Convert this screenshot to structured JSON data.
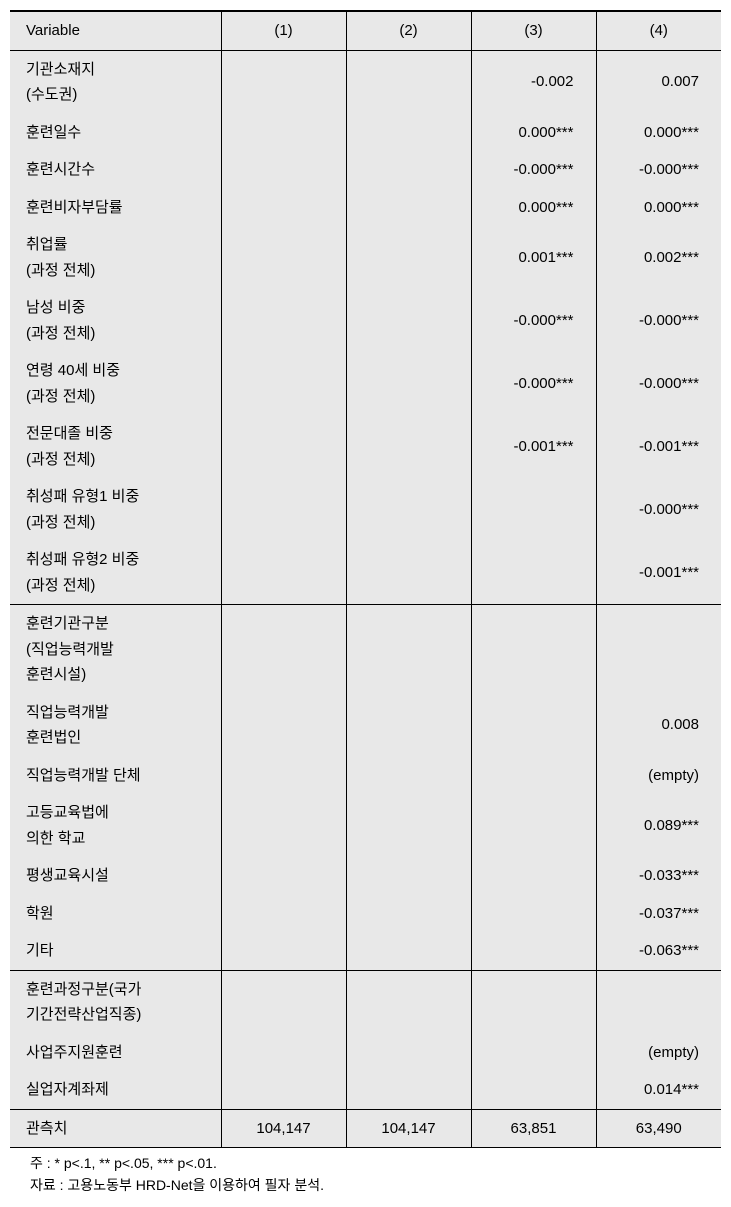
{
  "header": {
    "variable": "Variable",
    "c1": "(1)",
    "c2": "(2)",
    "c3": "(3)",
    "c4": "(4)"
  },
  "rows": [
    {
      "label": "기관소재지\n(수도권)",
      "c1": "",
      "c2": "",
      "c3": "-0.002",
      "c4": "0.007"
    },
    {
      "label": "훈련일수",
      "c1": "",
      "c2": "",
      "c3": "0.000***",
      "c4": "0.000***"
    },
    {
      "label": "훈련시간수",
      "c1": "",
      "c2": "",
      "c3": "-0.000***",
      "c4": "-0.000***"
    },
    {
      "label": "훈련비자부담률",
      "c1": "",
      "c2": "",
      "c3": "0.000***",
      "c4": "0.000***"
    },
    {
      "label": "취업률\n(과정 전체)",
      "c1": "",
      "c2": "",
      "c3": "0.001***",
      "c4": "0.002***"
    },
    {
      "label": "남성 비중\n(과정 전체)",
      "c1": "",
      "c2": "",
      "c3": "-0.000***",
      "c4": "-0.000***"
    },
    {
      "label": "연령 40세 비중\n(과정 전체)",
      "c1": "",
      "c2": "",
      "c3": "-0.000***",
      "c4": "-0.000***"
    },
    {
      "label": "전문대졸 비중\n(과정 전체)",
      "c1": "",
      "c2": "",
      "c3": "-0.001***",
      "c4": "-0.001***"
    },
    {
      "label": "취성패 유형1 비중\n(과정 전체)",
      "c1": "",
      "c2": "",
      "c3": "",
      "c4": "-0.000***"
    },
    {
      "label": "취성패 유형2 비중\n(과정 전체)",
      "c1": "",
      "c2": "",
      "c3": "",
      "c4": "-0.001***"
    }
  ],
  "section2": [
    {
      "label": "훈련기관구분\n(직업능력개발\n훈련시설)",
      "c1": "",
      "c2": "",
      "c3": "",
      "c4": ""
    },
    {
      "label": "직업능력개발\n훈련법인",
      "c1": "",
      "c2": "",
      "c3": "",
      "c4": "0.008"
    },
    {
      "label": "직업능력개발 단체",
      "c1": "",
      "c2": "",
      "c3": "",
      "c4": "(empty)"
    },
    {
      "label": "고등교육법에\n의한 학교",
      "c1": "",
      "c2": "",
      "c3": "",
      "c4": "0.089***"
    },
    {
      "label": "평생교육시설",
      "c1": "",
      "c2": "",
      "c3": "",
      "c4": "-0.033***"
    },
    {
      "label": "학원",
      "c1": "",
      "c2": "",
      "c3": "",
      "c4": "-0.037***"
    },
    {
      "label": "기타",
      "c1": "",
      "c2": "",
      "c3": "",
      "c4": "-0.063***"
    }
  ],
  "section3": [
    {
      "label": "훈련과정구분(국가\n기간전략산업직종)",
      "c1": "",
      "c2": "",
      "c3": "",
      "c4": ""
    },
    {
      "label": "사업주지원훈련",
      "c1": "",
      "c2": "",
      "c3": "",
      "c4": "(empty)"
    },
    {
      "label": "실업자계좌제",
      "c1": "",
      "c2": "",
      "c3": "",
      "c4": "0.014***"
    }
  ],
  "lastRow": {
    "label": "관측치",
    "c1": "104,147",
    "c2": "104,147",
    "c3": "63,851",
    "c4": "63,490"
  },
  "footnotes": {
    "line1": "주 : * p<.1, ** p<.05, *** p<.01.",
    "line2": "자료 : 고용노동부 HRD-Net을 이용하여 필자 분석."
  },
  "style": {
    "bg_color": "#e8e8e8",
    "border_color": "#000000",
    "font_size": 15,
    "footnote_font_size": 14
  }
}
